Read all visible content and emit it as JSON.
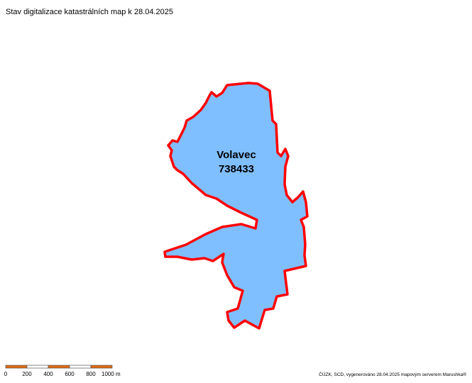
{
  "header": {
    "title": "Stav digitalizace katastrálních map k 28.04.2025"
  },
  "map": {
    "area": {
      "name": "Volavec",
      "code": "738433"
    }
  },
  "scale_bar": {
    "labels": [
      "0",
      "200",
      "400",
      "600",
      "800",
      "1000 m"
    ]
  },
  "footer": {
    "credits": "ČÚZK, SCD, vygenerováno 28.04.2025 mapovým serverem Marushka®"
  }
}
